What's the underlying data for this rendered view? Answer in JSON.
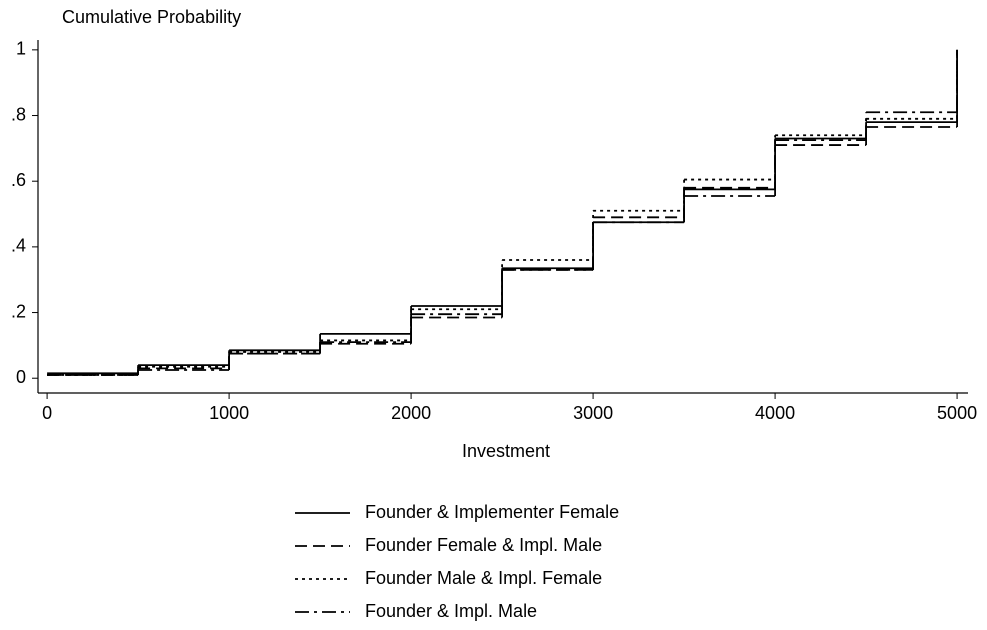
{
  "chart_data": {
    "type": "step",
    "ylabel": "Cumulative Probability",
    "xlabel": "Investment",
    "x": [
      0,
      500,
      1000,
      1500,
      2000,
      2500,
      3000,
      3500,
      4000,
      4500,
      5000
    ],
    "series": [
      {
        "name": "Founder & Implementer Female",
        "color": "#000000",
        "linestyle": "solid",
        "values": [
          0.015,
          0.04,
          0.085,
          0.135,
          0.22,
          0.335,
          0.475,
          0.575,
          0.73,
          0.78,
          1
        ]
      },
      {
        "name": "Founder Female & Impl. Male",
        "color": "#000000",
        "linestyle": "dashed",
        "values": [
          0.01,
          0.03,
          0.075,
          0.105,
          0.185,
          0.33,
          0.49,
          0.58,
          0.71,
          0.765,
          1
        ]
      },
      {
        "name": "Founder Male & Impl. Female",
        "color": "#000000",
        "linestyle": "dotted",
        "values": [
          0.01,
          0.035,
          0.08,
          0.115,
          0.21,
          0.36,
          0.51,
          0.605,
          0.74,
          0.79,
          1
        ]
      },
      {
        "name": "Founder & Impl. Male",
        "color": "#000000",
        "linestyle": "dashdot",
        "values": [
          0.01,
          0.025,
          0.075,
          0.11,
          0.195,
          0.33,
          0.475,
          0.555,
          0.725,
          0.81,
          1
        ]
      }
    ],
    "xlim": [
      -50,
      5060
    ],
    "xticks": [
      0,
      1000,
      2000,
      3000,
      4000,
      5000
    ],
    "ylim": [
      -0.045,
      1.03
    ],
    "yticks": [
      0,
      {
        "value": 0.2,
        "label": ".2"
      },
      {
        "value": 0.4,
        "label": ".4"
      },
      {
        "value": 0.6,
        "label": ".6"
      },
      {
        "value": 0.8,
        "label": ".8"
      },
      1
    ],
    "legend": "bottom"
  }
}
